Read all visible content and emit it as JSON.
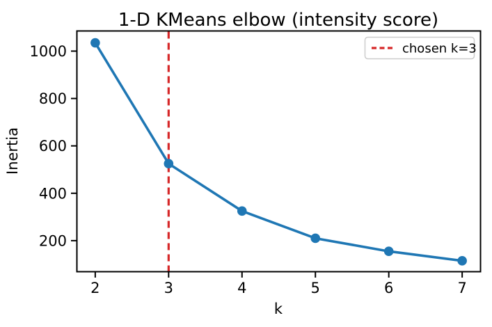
{
  "chart_data": {
    "type": "line",
    "title": "1-D KMeans elbow (intensity score)",
    "xlabel": "k",
    "ylabel": "Inertia",
    "x": [
      2,
      3,
      4,
      5,
      6,
      7
    ],
    "series": [
      {
        "name": "inertia",
        "values": [
          1035,
          525,
          325,
          210,
          155,
          115
        ],
        "color": "#1f77b4",
        "marker": "circle",
        "line_width": 3.6,
        "marker_radius": 6.8
      }
    ],
    "vline": {
      "x": 3,
      "label": "chosen k=3",
      "color": "#d62728",
      "style": "dashed",
      "line_width": 3.2
    },
    "legend": {
      "position": "upper right",
      "entries": [
        {
          "label": "chosen k=3",
          "color": "#d62728",
          "line_style": "dashed"
        }
      ]
    },
    "xlim": [
      1.75,
      7.25
    ],
    "ylim": [
      69,
      1085
    ],
    "xticks": [
      2,
      3,
      4,
      5,
      6,
      7
    ],
    "yticks": [
      200,
      400,
      600,
      800,
      1000
    ],
    "grid": false
  },
  "colors": {
    "line": "#1f77b4",
    "vline": "#d62728",
    "text": "#000000",
    "spine": "#000000",
    "legend_border": "#cccccc",
    "background": "#ffffff"
  }
}
